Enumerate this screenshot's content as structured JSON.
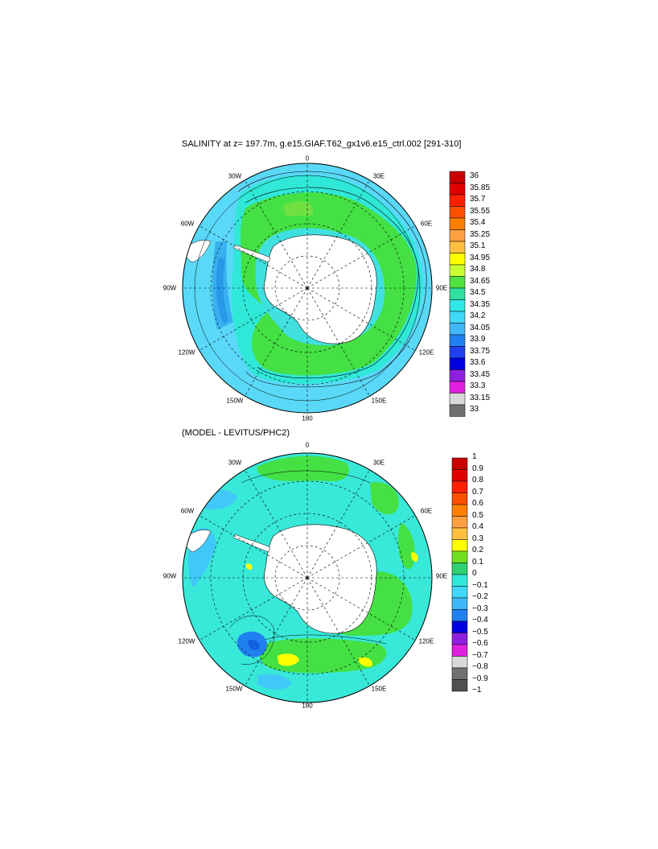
{
  "top_panel": {
    "title": "SALINITY at z= 197.7m, g.e15.GIAF.T62_gx1v6.e15_ctrl.002 [291-310]",
    "longitude_labels": [
      "0",
      "30E",
      "60E",
      "90E",
      "120E",
      "150E",
      "180",
      "150W",
      "120W",
      "90W",
      "60W",
      "30W"
    ],
    "colorbar": {
      "levels": [
        "36",
        "35.85",
        "35.7",
        "35.55",
        "35.4",
        "35.25",
        "35.1",
        "34.95",
        "34.8",
        "34.65",
        "34.5",
        "34.35",
        "34.2",
        "34.05",
        "33.9",
        "33.75",
        "33.6",
        "33.45",
        "33.3",
        "33.15",
        "33"
      ],
      "colors": [
        "#c80000",
        "#e00000",
        "#ff2000",
        "#ff5000",
        "#ff8000",
        "#ffa040",
        "#ffc040",
        "#ffff00",
        "#c8ff30",
        "#50e040",
        "#30e0a0",
        "#30e8e8",
        "#40d8f8",
        "#40b8f8",
        "#2080f0",
        "#2040f0",
        "#0000e0",
        "#9020e0",
        "#e020e0",
        "#d8d8d8",
        "#707070"
      ]
    },
    "map_colors": {
      "ocean_fresh": "#5ad8f8",
      "ocean_mid": "#30e8d8",
      "ocean_salty": "#44e044",
      "ocean_low": "#38b0f0",
      "land": "#ffffff"
    }
  },
  "bottom_panel": {
    "title": "(MODEL - LEVITUS/PHC2)",
    "longitude_labels": [
      "0",
      "30E",
      "60E",
      "90E",
      "120E",
      "150E",
      "180",
      "150W",
      "120W",
      "90W",
      "60W",
      "30W"
    ],
    "colorbar": {
      "levels": [
        "1",
        "0.9",
        "0.8",
        "0.7",
        "0.6",
        "0.5",
        "0.4",
        "0.3",
        "0.2",
        "0.1",
        "0",
        "−0.1",
        "−0.2",
        "−0.3",
        "−0.4",
        "−0.5",
        "−0.6",
        "−0.7",
        "−0.8",
        "−0.9",
        "−1"
      ],
      "colors": [
        "#c80000",
        "#e00000",
        "#ff2000",
        "#ff5000",
        "#ff8000",
        "#ffa040",
        "#ffc040",
        "#ffff00",
        "#70e020",
        "#30d070",
        "#30e8d8",
        "#40d8f8",
        "#40b8f8",
        "#2080f0",
        "#0000e0",
        "#9020e0",
        "#e020e0",
        "#d8d8d8",
        "#707070",
        "#505050"
      ]
    },
    "map_colors": {
      "ocean_zero": "#38e8d8",
      "ocean_pos": "#44e044",
      "ocean_neg": "#40c8f8",
      "ocean_strong_neg": "#2080f0",
      "ocean_strong_pos": "#ffff00",
      "land": "#ffffff"
    }
  }
}
